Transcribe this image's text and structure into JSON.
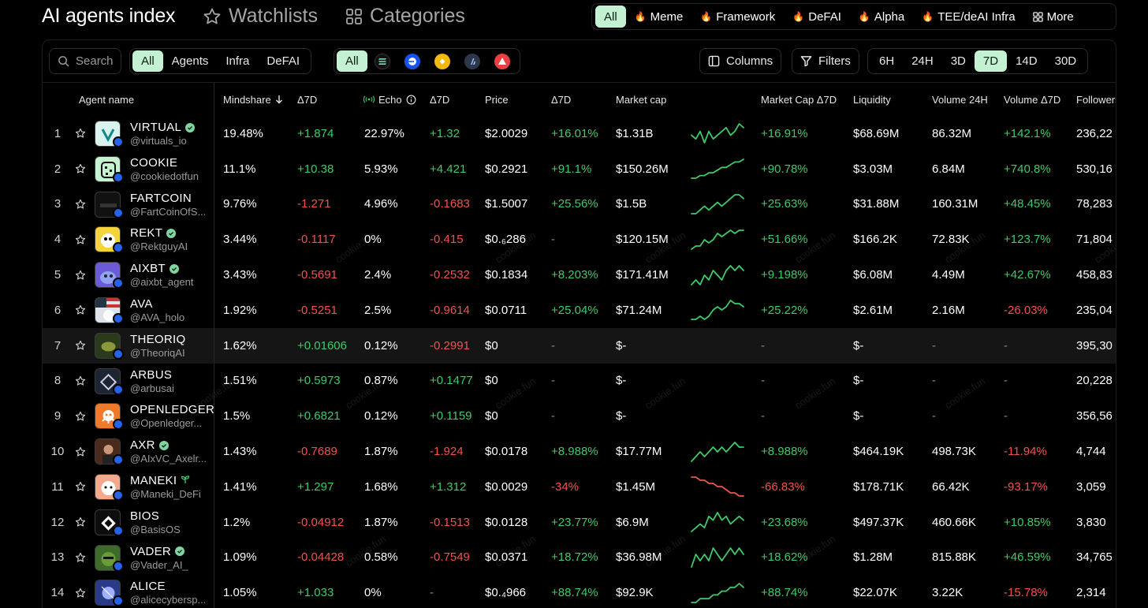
{
  "header": {
    "title": "AI agents index",
    "watchlists": "Watchlists",
    "categories": "Categories",
    "category_tabs": [
      {
        "label": "All",
        "active": true,
        "fire": false
      },
      {
        "label": "Meme",
        "active": false,
        "fire": true
      },
      {
        "label": "Framework",
        "active": false,
        "fire": true
      },
      {
        "label": "DeFAI",
        "active": false,
        "fire": true
      },
      {
        "label": "Alpha",
        "active": false,
        "fire": true
      },
      {
        "label": "TEE/deAI Infra",
        "active": false,
        "fire": true
      }
    ],
    "more": "More"
  },
  "toolbar": {
    "search_placeholder": "Search",
    "type_filters": [
      {
        "label": "All",
        "active": true
      },
      {
        "label": "Agents",
        "active": false
      },
      {
        "label": "Infra",
        "active": false
      },
      {
        "label": "DeFAI",
        "active": false
      }
    ],
    "chain_all": "All",
    "chains": [
      {
        "name": "solana-icon",
        "color": "#111111"
      },
      {
        "name": "base-icon",
        "color": "#1652f0"
      },
      {
        "name": "bnb-icon",
        "color": "#f0b90b"
      },
      {
        "name": "arbitrum-icon",
        "color": "#2d374b"
      },
      {
        "name": "avalanche-icon",
        "color": "#e84142"
      }
    ],
    "columns": "Columns",
    "filters": "Filters",
    "timeframes": [
      {
        "label": "6H",
        "active": false
      },
      {
        "label": "24H",
        "active": false
      },
      {
        "label": "3D",
        "active": false
      },
      {
        "label": "7D",
        "active": true
      },
      {
        "label": "14D",
        "active": false
      },
      {
        "label": "30D",
        "active": false
      }
    ]
  },
  "table": {
    "headers": {
      "agent": "Agent name",
      "mindshare": "Mindshare",
      "mindshare_delta": "Δ7D",
      "echo": "Echo",
      "echo_delta": "Δ7D",
      "price": "Price",
      "price_delta": "Δ7D",
      "mcap": "Market cap",
      "mcap_delta": "Market Cap Δ7D",
      "liquidity": "Liquidity",
      "volume": "Volume 24H",
      "volume_delta": "Volume Δ7D",
      "followers": "Followers"
    },
    "watermark": "cookie.fun",
    "rows": [
      {
        "rank": "1",
        "name": "VIRTUAL",
        "verified": true,
        "handle": "@virtuals_io",
        "avatar_bg": "#d9f3ef",
        "mindshare": "19.48%",
        "ms_delta": "+1.874",
        "echo": "22.97%",
        "echo_delta": "+1.32",
        "price": "$2.0029",
        "price_delta": "+16.01%",
        "mcap": "$1.31B",
        "spark": [
          5,
          4,
          6,
          3,
          6,
          4,
          5,
          6,
          7,
          5,
          6,
          8,
          7
        ],
        "spark_up": true,
        "mcap_delta": "+16.91%",
        "liquidity": "$68.69M",
        "volume": "86.32M",
        "volume_delta": "+142.1%",
        "followers": "236,22"
      },
      {
        "rank": "2",
        "name": "COOKIE",
        "verified": false,
        "handle": "@cookiedotfun",
        "avatar_bg": "#c6f3cf",
        "mindshare": "11.1%",
        "ms_delta": "+10.38",
        "echo": "5.93%",
        "echo_delta": "+4.421",
        "price": "$0.2921",
        "price_delta": "+91.1%",
        "mcap": "$150.26M",
        "spark": [
          2,
          2,
          3,
          3,
          4,
          4,
          5,
          6,
          6,
          7,
          8,
          8,
          9
        ],
        "spark_up": true,
        "mcap_delta": "+90.78%",
        "liquidity": "$3.03M",
        "volume": "6.84M",
        "volume_delta": "+740.8%",
        "followers": "530,16"
      },
      {
        "rank": "3",
        "name": "FARTCOIN",
        "verified": false,
        "handle": "@FartCoinOfS...",
        "avatar_bg": "#111111",
        "mindshare": "9.76%",
        "ms_delta": "-1.271",
        "echo": "4.96%",
        "echo_delta": "-0.1683",
        "price": "$1.5007",
        "price_delta": "+25.56%",
        "mcap": "$1.5B",
        "spark": [
          3,
          3,
          4,
          5,
          4,
          5,
          6,
          5,
          6,
          7,
          8,
          8,
          7
        ],
        "spark_up": true,
        "mcap_delta": "+25.63%",
        "liquidity": "$31.88M",
        "volume": "160.31M",
        "volume_delta": "+48.45%",
        "followers": "78,283"
      },
      {
        "rank": "4",
        "name": "REKT",
        "verified": true,
        "handle": "@RektguyAI",
        "avatar_bg": "#f5d33b",
        "mindshare": "3.44%",
        "ms_delta": "-0.1117",
        "echo": "0%",
        "echo_delta": "-0.415",
        "price": "$0.₆286",
        "price_delta": "-",
        "mcap": "$120.15M",
        "spark": [
          2,
          3,
          3,
          5,
          4,
          5,
          7,
          6,
          7,
          8,
          7,
          8,
          8
        ],
        "spark_up": true,
        "mcap_delta": "+51.66%",
        "liquidity": "$166.2K",
        "volume": "72.83K",
        "volume_delta": "+123.7%",
        "followers": "71,804"
      },
      {
        "rank": "5",
        "name": "AIXBT",
        "verified": true,
        "handle": "@aixbt_agent",
        "avatar_bg": "#6b5bd6",
        "mindshare": "3.43%",
        "ms_delta": "-0.5691",
        "echo": "2.4%",
        "echo_delta": "-0.2532",
        "price": "$0.1834",
        "price_delta": "+8.203%",
        "mcap": "$171.41M",
        "spark": [
          3,
          4,
          3,
          5,
          4,
          6,
          5,
          4,
          6,
          7,
          6,
          7,
          6
        ],
        "spark_up": true,
        "mcap_delta": "+9.198%",
        "liquidity": "$6.08M",
        "volume": "4.49M",
        "volume_delta": "+42.67%",
        "followers": "458,83"
      },
      {
        "rank": "6",
        "name": "AVA",
        "verified": false,
        "handle": "@AVA_holo",
        "avatar_bg": "#dfe3ea",
        "mindshare": "1.92%",
        "ms_delta": "-0.5251",
        "echo": "2.5%",
        "echo_delta": "-0.9614",
        "price": "$0.0711",
        "price_delta": "+25.04%",
        "mcap": "$71.24M",
        "spark": [
          3,
          3,
          4,
          3,
          4,
          6,
          7,
          6,
          7,
          9,
          8,
          8,
          7
        ],
        "spark_up": true,
        "mcap_delta": "+25.22%",
        "liquidity": "$2.61M",
        "volume": "2.16M",
        "volume_delta": "-26.03%",
        "followers": "235,04"
      },
      {
        "rank": "7",
        "name": "THEORIQ",
        "verified": false,
        "handle": "@TheoriqAI",
        "avatar_bg": "#2b3a1a",
        "mindshare": "1.62%",
        "ms_delta": "+0.01606",
        "echo": "0.12%",
        "echo_delta": "-0.2991",
        "price": "$0",
        "price_delta": "-",
        "mcap": "$-",
        "spark": [],
        "spark_up": true,
        "mcap_delta": "-",
        "liquidity": "$-",
        "volume": "-",
        "volume_delta": "-",
        "followers": "395,30"
      },
      {
        "rank": "8",
        "name": "ARBUS",
        "verified": false,
        "handle": "@arbusai",
        "avatar_bg": "#1d2433",
        "mindshare": "1.51%",
        "ms_delta": "+0.5973",
        "echo": "0.87%",
        "echo_delta": "+0.1477",
        "price": "$0",
        "price_delta": "-",
        "mcap": "$-",
        "spark": [],
        "spark_up": true,
        "mcap_delta": "-",
        "liquidity": "$-",
        "volume": "-",
        "volume_delta": "-",
        "followers": "20,228"
      },
      {
        "rank": "9",
        "name": "OPENLEDGER",
        "verified": false,
        "handle": "@Openledger...",
        "avatar_bg": "#f07a2a",
        "mindshare": "1.5%",
        "ms_delta": "+0.6821",
        "echo": "0.12%",
        "echo_delta": "+0.1159",
        "price": "$0",
        "price_delta": "-",
        "mcap": "$-",
        "spark": [],
        "spark_up": true,
        "mcap_delta": "-",
        "liquidity": "$-",
        "volume": "-",
        "volume_delta": "-",
        "followers": "356,56"
      },
      {
        "rank": "10",
        "name": "AXR",
        "verified": true,
        "handle": "@AIxVC_Axelr...",
        "avatar_bg": "#4a2a1a",
        "mindshare": "1.43%",
        "ms_delta": "-0.7689",
        "echo": "1.87%",
        "echo_delta": "-1.924",
        "price": "$0.0178",
        "price_delta": "+8.988%",
        "mcap": "$17.77M",
        "spark": [
          3,
          4,
          5,
          4,
          5,
          6,
          5,
          6,
          5,
          6,
          7,
          6,
          6
        ],
        "spark_up": true,
        "mcap_delta": "+8.988%",
        "liquidity": "$464.19K",
        "volume": "498.73K",
        "volume_delta": "-11.94%",
        "followers": "4,744"
      },
      {
        "rank": "11",
        "name": "MANEKI",
        "verified": false,
        "handle": "@Maneki_DeFi",
        "avatar_bg": "#f4a98a",
        "mindshare": "1.41%",
        "ms_delta": "+1.297",
        "echo": "1.68%",
        "echo_delta": "+1.312",
        "price": "$0.0029",
        "price_delta": "-34%",
        "mcap": "$1.45M",
        "spark": [
          8,
          8,
          7,
          7,
          6,
          6,
          5,
          5,
          4,
          3,
          3,
          2,
          2
        ],
        "spark_up": false,
        "mcap_delta": "-66.83%",
        "liquidity": "$178.71K",
        "volume": "66.42K",
        "volume_delta": "-93.17%",
        "followers": "3,059"
      },
      {
        "rank": "12",
        "name": "BIOS",
        "verified": false,
        "handle": "@BasisOS",
        "avatar_bg": "#0d0d0d",
        "mindshare": "1.2%",
        "ms_delta": "-0.04912",
        "echo": "1.87%",
        "echo_delta": "-0.1513",
        "price": "$0.0128",
        "price_delta": "+23.77%",
        "mcap": "$6.9M",
        "spark": [
          3,
          4,
          5,
          4,
          7,
          6,
          8,
          6,
          7,
          5,
          6,
          7,
          6
        ],
        "spark_up": true,
        "mcap_delta": "+23.68%",
        "liquidity": "$497.37K",
        "volume": "460.66K",
        "volume_delta": "+10.85%",
        "followers": "3,830"
      },
      {
        "rank": "13",
        "name": "VADER",
        "verified": true,
        "handle": "@Vader_AI_",
        "avatar_bg": "#3f6b2a",
        "mindshare": "1.09%",
        "ms_delta": "-0.04428",
        "echo": "0.58%",
        "echo_delta": "-0.7549",
        "price": "$0.0371",
        "price_delta": "+18.72%",
        "mcap": "$36.98M",
        "spark": [
          4,
          6,
          5,
          6,
          5,
          7,
          6,
          5,
          6,
          7,
          6,
          7,
          6
        ],
        "spark_up": true,
        "mcap_delta": "+18.62%",
        "liquidity": "$1.28M",
        "volume": "815.88K",
        "volume_delta": "+46.59%",
        "followers": "34,765"
      },
      {
        "rank": "14",
        "name": "ALICE",
        "verified": false,
        "handle": "@alicecybersp...",
        "avatar_bg": "#2a3a8a",
        "mindshare": "1.05%",
        "ms_delta": "+1.033",
        "echo": "0%",
        "echo_delta": "-",
        "price": "$0.₄966",
        "price_delta": "+88.74%",
        "mcap": "$92.9K",
        "spark": [
          2,
          2,
          3,
          3,
          3,
          4,
          4,
          5,
          5,
          6,
          6,
          7,
          6
        ],
        "spark_up": true,
        "mcap_delta": "+88.74%",
        "liquidity": "$22.07K",
        "volume": "3.22K",
        "volume_delta": "-15.78%",
        "followers": "2,314"
      }
    ]
  }
}
